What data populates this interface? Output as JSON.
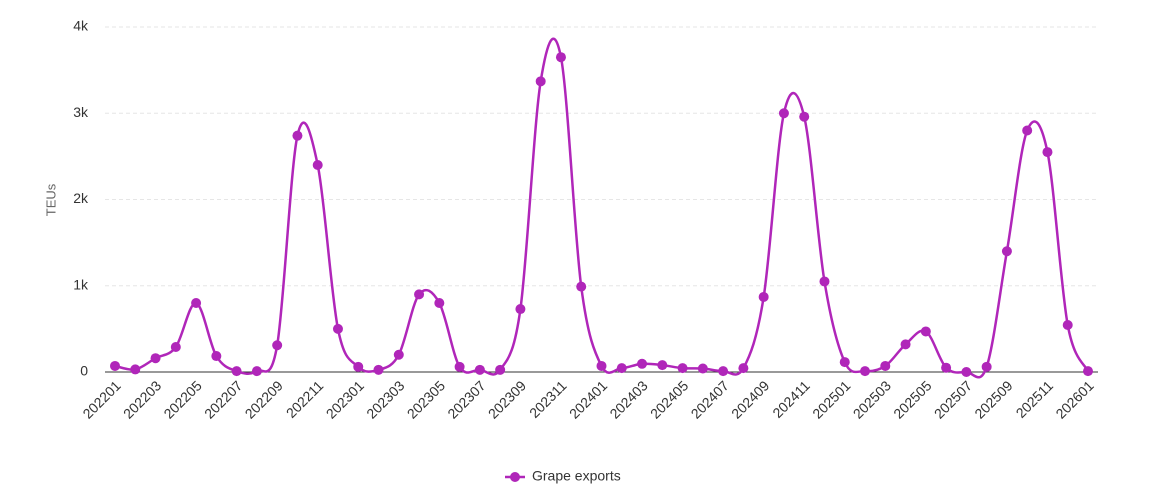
{
  "chart_data": {
    "type": "line",
    "categories": [
      "202201",
      null,
      "202203",
      null,
      "202205",
      null,
      "202207",
      null,
      "202209",
      null,
      "202211",
      null,
      "202301",
      null,
      "202303",
      null,
      "202305",
      null,
      "202307",
      null,
      "202309",
      null,
      "202311",
      null,
      "202401",
      null,
      "202403",
      null,
      "202405",
      null,
      "202407",
      null,
      "202409",
      null,
      "202411",
      null,
      "202501",
      null,
      "202503",
      null,
      "202505",
      null,
      "202507",
      null,
      "202509",
      null,
      "202511",
      null,
      "202601"
    ],
    "series": [
      {
        "name": "Grape exports",
        "color": "#b026b9",
        "values": [
          70,
          30,
          160,
          290,
          800,
          185,
          10,
          10,
          310,
          2740,
          2400,
          500,
          60,
          25,
          200,
          900,
          800,
          60,
          25,
          25,
          730,
          3370,
          3650,
          990,
          70,
          45,
          95,
          80,
          45,
          40,
          10,
          45,
          870,
          3000,
          2960,
          1050,
          115,
          10,
          70,
          320,
          470,
          50,
          0,
          60,
          1400,
          2800,
          2550,
          545,
          10
        ]
      }
    ],
    "y_label": "TEUs",
    "ylim": [
      0,
      4000
    ],
    "yticks": [
      0,
      {
        "value": 1000,
        "label": "1k"
      },
      {
        "value": 2000,
        "label": "2k"
      },
      {
        "value": 3000,
        "label": "3k"
      },
      {
        "value": 4000,
        "label": "4k"
      }
    ],
    "grid": true,
    "legend": "bottom"
  }
}
